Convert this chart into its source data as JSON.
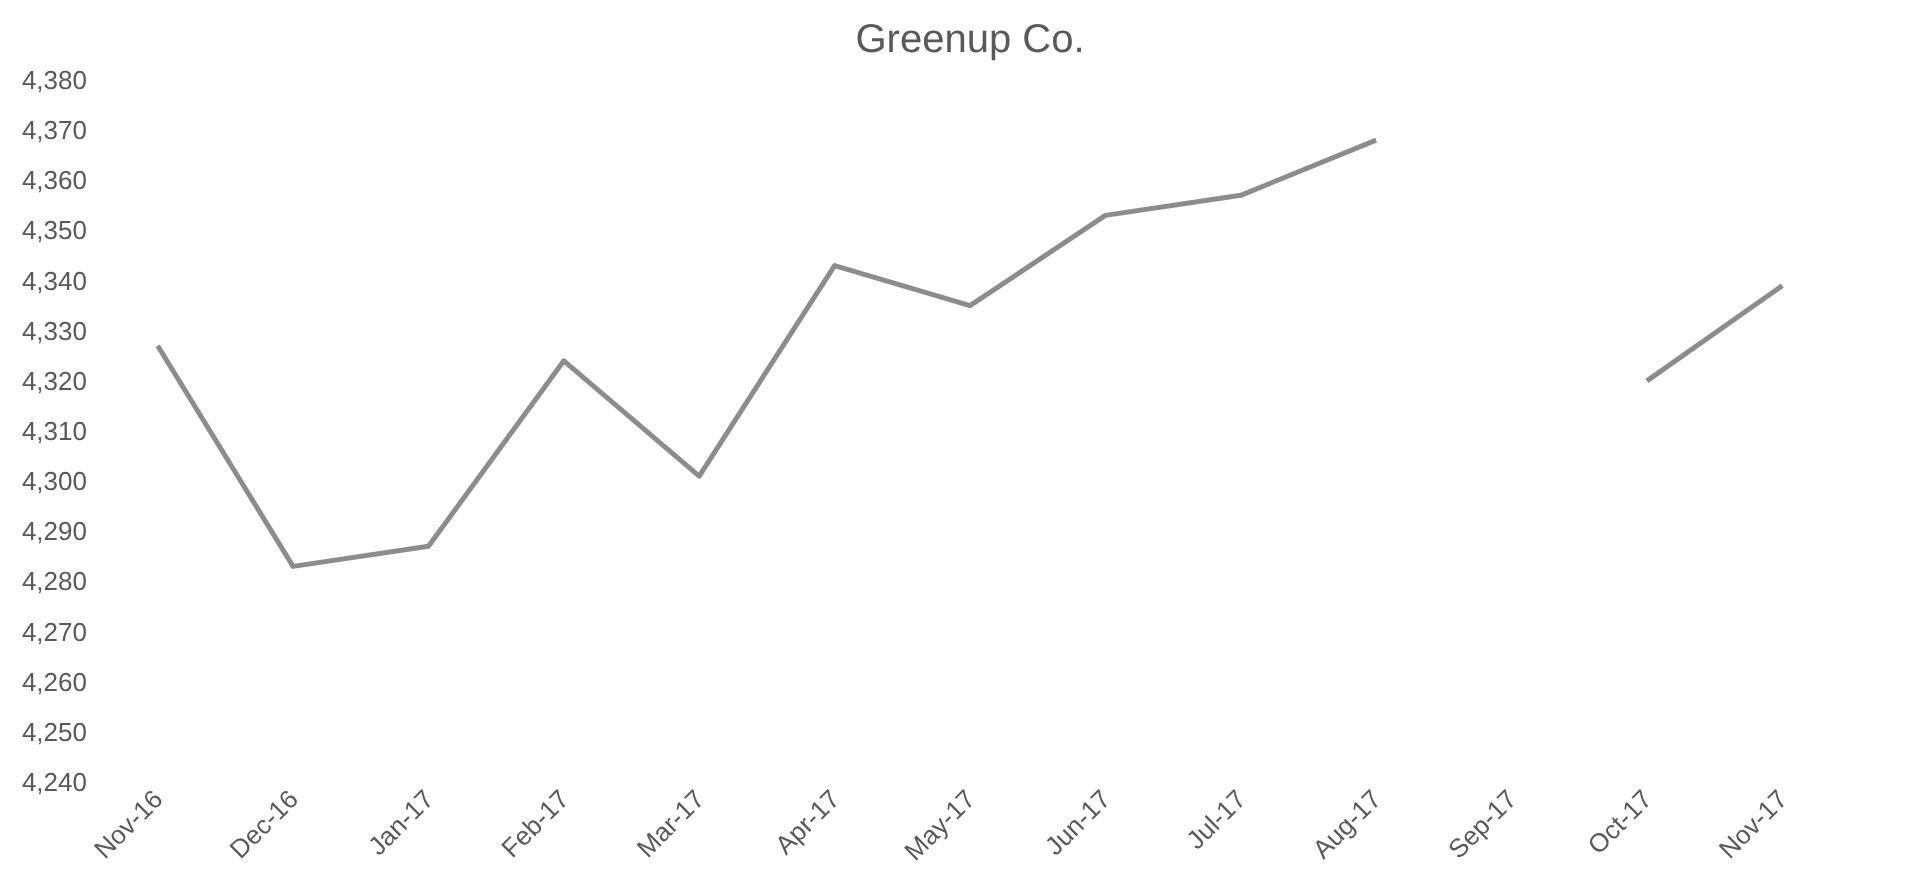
{
  "chart_data": {
    "type": "line",
    "title": "Greenup Co.",
    "categories": [
      "Nov-16",
      "Dec-16",
      "Jan-17",
      "Feb-17",
      "Mar-17",
      "Apr-17",
      "May-17",
      "Jun-17",
      "Jul-17",
      "Aug-17",
      "Sep-17",
      "Oct-17",
      "Nov-17"
    ],
    "series": [
      {
        "color": "#8c8c8c",
        "values": [
          4327,
          4283,
          4287,
          4324,
          4301,
          4343,
          4335,
          4353,
          4357,
          4368,
          null,
          4320,
          4339
        ]
      }
    ],
    "ylim": [
      4240,
      4380
    ],
    "yticks": [
      {
        "value": 4240,
        "label": "4,240"
      },
      {
        "value": 4250,
        "label": "4,250"
      },
      {
        "value": 4260,
        "label": "4,260"
      },
      {
        "value": 4270,
        "label": "4,270"
      },
      {
        "value": 4280,
        "label": "4,280"
      },
      {
        "value": 4290,
        "label": "4,290"
      },
      {
        "value": 4300,
        "label": "4,300"
      },
      {
        "value": 4310,
        "label": "4,310"
      },
      {
        "value": 4320,
        "label": "4,320"
      },
      {
        "value": 4330,
        "label": "4,330"
      },
      {
        "value": 4340,
        "label": "4,340"
      },
      {
        "value": 4350,
        "label": "4,350"
      },
      {
        "value": 4360,
        "label": "4,360"
      },
      {
        "value": 4370,
        "label": "4,370"
      },
      {
        "value": 4380,
        "label": "4,380"
      }
    ],
    "grid": false,
    "marker": "none",
    "line_style": "solid"
  }
}
